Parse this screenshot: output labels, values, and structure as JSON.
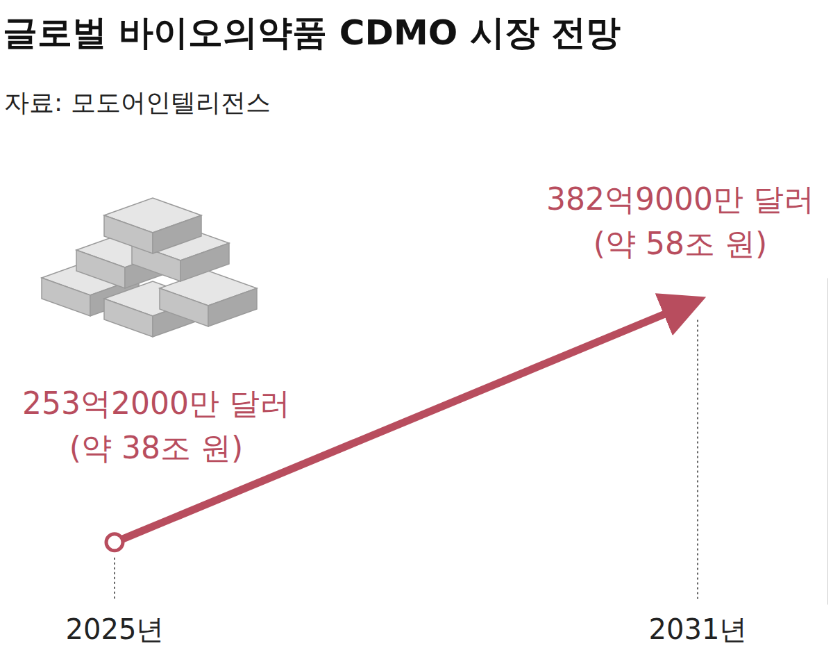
{
  "chart_data": {
    "type": "line",
    "title": "글로벌 바이오의약품 CDMO 시장 전망",
    "subtitle": "자료: 모도어인텔리전스",
    "categories": [
      "2025년",
      "2031년"
    ],
    "values": [
      25320000000,
      38290000000
    ],
    "value_labels": [
      "253억2000만 달러",
      "382억9000만 달러"
    ],
    "krw_labels": [
      "(약 38조 원)",
      "(약 58조 원)"
    ],
    "color": "#b84d5e",
    "ylim": [
      22000000000,
      39500000000
    ],
    "yticks": [],
    "tick_labels": "x",
    "data_labels": true,
    "marker": "circle",
    "line_style": "arrow"
  }
}
